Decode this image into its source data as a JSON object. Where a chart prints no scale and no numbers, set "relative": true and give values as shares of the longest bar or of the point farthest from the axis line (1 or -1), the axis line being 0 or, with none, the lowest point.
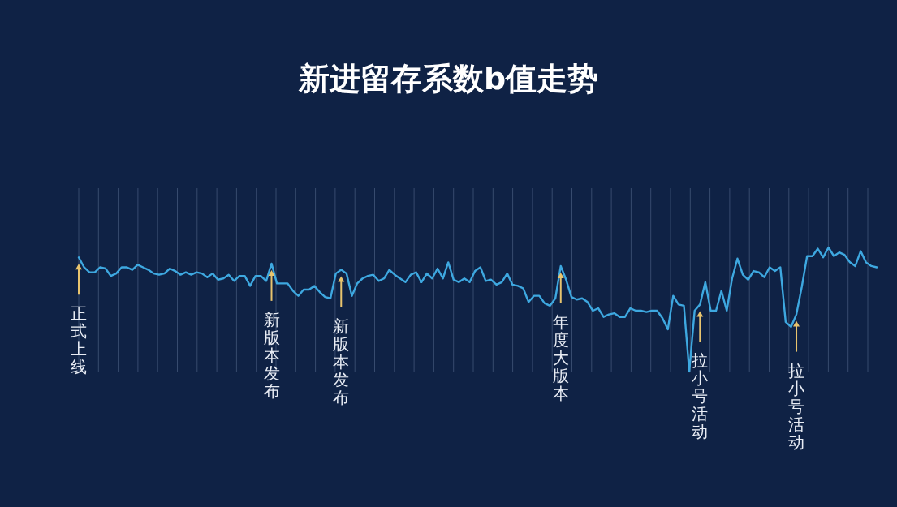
{
  "chart_data": {
    "type": "line",
    "title": "新进留存系数b值走势",
    "relative": true,
    "grid": "x",
    "marker": "none",
    "line_style": "solid",
    "categories": [
      null,
      null,
      null,
      null,
      null,
      null,
      null,
      null,
      null,
      null,
      null,
      null,
      null,
      null,
      null,
      null,
      null,
      null,
      null,
      null,
      null,
      null,
      null,
      null,
      null,
      null,
      null,
      null,
      null,
      null,
      null,
      null,
      null,
      null,
      null,
      null,
      null,
      null,
      null,
      null,
      null,
      null,
      null,
      null,
      null,
      null,
      null,
      null,
      null,
      null,
      null,
      null,
      null,
      null,
      null,
      null,
      null,
      null,
      null,
      null,
      null,
      null,
      null,
      null,
      null,
      null,
      null,
      null,
      null,
      null,
      null,
      null,
      null,
      null,
      null,
      null,
      null,
      null,
      null,
      null,
      null,
      null,
      null,
      null,
      null,
      null,
      null,
      null,
      null,
      null,
      null,
      null,
      null,
      null,
      null,
      null,
      null,
      null,
      null,
      null,
      null,
      null,
      null,
      null,
      null,
      null,
      null,
      null,
      null,
      null,
      null,
      null,
      null,
      null,
      null,
      null,
      null,
      null,
      null,
      null,
      null,
      null,
      null,
      null,
      null,
      null,
      null,
      null,
      null,
      null,
      null,
      null,
      null,
      null,
      null,
      null,
      null,
      null,
      null,
      null,
      null,
      null,
      null,
      null,
      null,
      null,
      null,
      null,
      null,
      null
    ],
    "series": [
      {
        "color": "#3ea8e0",
        "values": [
          0.92,
          0.84,
          0.8,
          0.8,
          0.84,
          0.83,
          0.77,
          0.79,
          0.84,
          0.84,
          0.82,
          0.86,
          0.84,
          0.82,
          0.79,
          0.78,
          0.79,
          0.83,
          0.81,
          0.78,
          0.8,
          0.78,
          0.8,
          0.79,
          0.76,
          0.79,
          0.74,
          0.75,
          0.78,
          0.73,
          0.77,
          0.77,
          0.69,
          0.77,
          0.77,
          0.73,
          0.87,
          0.71,
          0.71,
          0.71,
          0.65,
          0.61,
          0.66,
          0.66,
          0.69,
          0.64,
          0.6,
          0.59,
          0.79,
          0.82,
          0.79,
          0.61,
          0.71,
          0.75,
          0.77,
          0.78,
          0.73,
          0.75,
          0.82,
          0.78,
          0.75,
          0.72,
          0.78,
          0.8,
          0.72,
          0.79,
          0.75,
          0.83,
          0.75,
          0.88,
          0.74,
          0.72,
          0.75,
          0.72,
          0.81,
          0.84,
          0.73,
          0.74,
          0.7,
          0.72,
          0.79,
          0.7,
          0.69,
          0.67,
          0.56,
          0.61,
          0.61,
          0.55,
          0.53,
          0.59,
          0.85,
          0.74,
          0.6,
          0.58,
          0.59,
          0.56,
          0.49,
          0.51,
          0.44,
          0.46,
          0.47,
          0.44,
          0.44,
          0.51,
          0.49,
          0.49,
          0.48,
          0.49,
          0.49,
          0.43,
          0.34,
          0.61,
          0.54,
          0.53,
          0,
          0.49,
          0.54,
          0.72,
          0.49,
          0.49,
          0.65,
          0.49,
          0.75,
          0.91,
          0.78,
          0.74,
          0.81,
          0.8,
          0.76,
          0.84,
          0.81,
          0.84,
          0.4,
          0.36,
          0.46,
          0.68,
          0.93,
          0.93,
          0.99,
          0.92,
          1,
          0.93,
          0.96,
          0.94,
          0.88,
          0.85,
          0.97,
          0.88,
          0.85,
          0.84
        ]
      }
    ],
    "annotations": [
      "正式上线",
      "新版本发布",
      "新版本发布",
      "年度大版本",
      "拉小号活动",
      "拉小号活动"
    ]
  }
}
